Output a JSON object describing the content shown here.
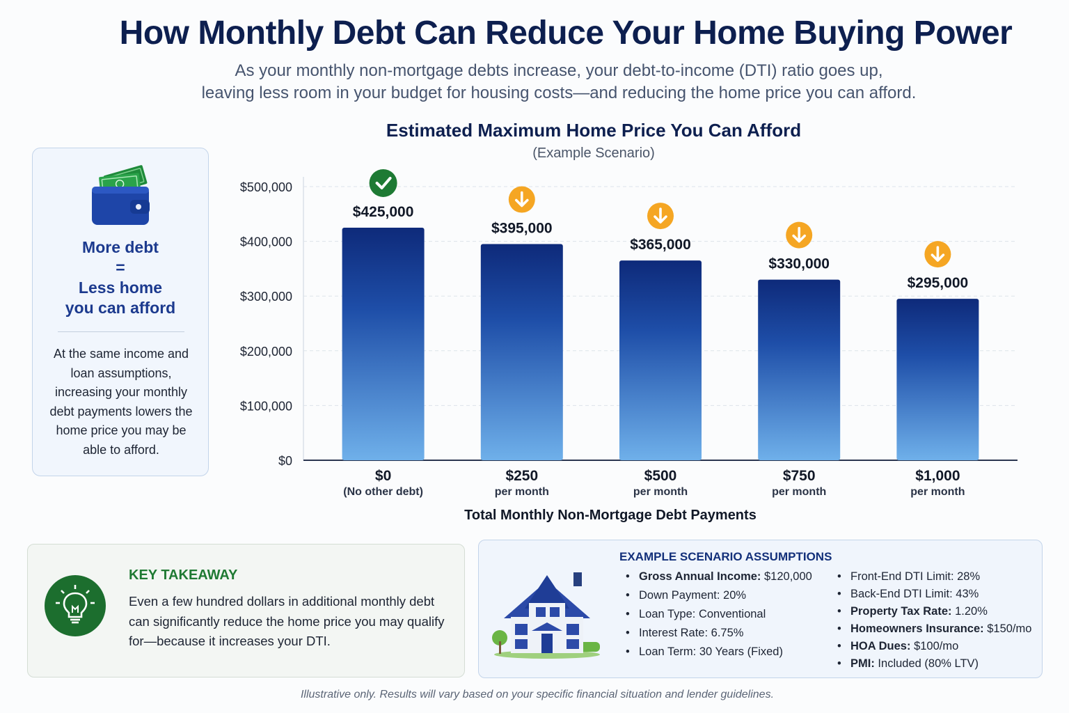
{
  "header": {
    "title": "How Monthly Debt Can Reduce Your Home Buying Power",
    "subtitle_line1": "As your monthly non-mortgage debts increase, your debt-to-income (DTI) ratio goes up,",
    "subtitle_line2": "leaving less room in your budget for housing costs—and reducing the home price you can afford."
  },
  "side_card": {
    "line1": "More debt",
    "line2": "=",
    "line3": "Less home",
    "line4": "you can afford",
    "body": "At the same income and loan assumptions, increasing your monthly debt payments lowers the home price you may be able to afford.",
    "icon": "wallet-with-cash-icon"
  },
  "chart_data": {
    "type": "bar",
    "title": "Estimated Maximum Home Price You Can Afford",
    "subtitle": "(Example Scenario)",
    "xlabel": "Total Monthly Non-Mortgage Debt Payments",
    "ylabel": "",
    "ylim": [
      0,
      500000
    ],
    "yticks": [
      0,
      100000,
      200000,
      300000,
      400000,
      500000
    ],
    "ytick_labels": [
      "$0",
      "$100,000",
      "$200,000",
      "$300,000",
      "$400,000",
      "$500,000"
    ],
    "grid": true,
    "categories": [
      "$0",
      "$250",
      "$500",
      "$750",
      "$1,000"
    ],
    "category_sublabels": [
      "(No other debt)",
      "per month",
      "per month",
      "per month",
      "per month"
    ],
    "values": [
      425000,
      395000,
      365000,
      330000,
      295000
    ],
    "value_labels": [
      "$425,000",
      "$395,000",
      "$365,000",
      "$330,000",
      "$295,000"
    ],
    "markers": [
      "check",
      "down",
      "down",
      "down",
      "down"
    ]
  },
  "colors": {
    "bar_top": "#0e2a7a",
    "bar_bottom": "#6fb0ea",
    "check_green": "#1e7a34",
    "arrow_amber": "#f5a623",
    "title_navy": "#0d1f4f"
  },
  "takeaway": {
    "heading": "KEY TAKEAWAY",
    "body": "Even a few hundred dollars in additional monthly debt can significantly reduce the home price you may qualify for—because it increases your DTI.",
    "icon": "lightbulb-icon"
  },
  "assumptions": {
    "heading": "EXAMPLE SCENARIO ASSUMPTIONS",
    "icon": "house-icon",
    "left": [
      {
        "label": "Gross Annual Income:",
        "value": " $120,000",
        "bold": true
      },
      {
        "label": "Down Payment:",
        "value": " 20%",
        "bold": false
      },
      {
        "label": "Loan Type:",
        "value": " Conventional",
        "bold": false
      },
      {
        "label": "Interest Rate:",
        "value": " 6.75%",
        "bold": false
      },
      {
        "label": "Loan Term:",
        "value": " 30 Years (Fixed)",
        "bold": false
      }
    ],
    "right": [
      {
        "label": "Front-End DTI Limit:",
        "value": " 28%",
        "bold": false
      },
      {
        "label": "Back-End DTI Limit:",
        "value": " 43%",
        "bold": false
      },
      {
        "label": "Property Tax Rate:",
        "value": " 1.20%",
        "bold": true
      },
      {
        "label": "Homeowners Insurance:",
        "value": " $150/mo",
        "bold": true
      },
      {
        "label": "HOA Dues:",
        "value": " $100/mo",
        "bold": true
      },
      {
        "label": "PMI:",
        "value": " Included (80% LTV)",
        "bold": true
      }
    ]
  },
  "footer": {
    "note": "Illustrative only. Results will vary based on your specific financial situation and lender guidelines."
  }
}
